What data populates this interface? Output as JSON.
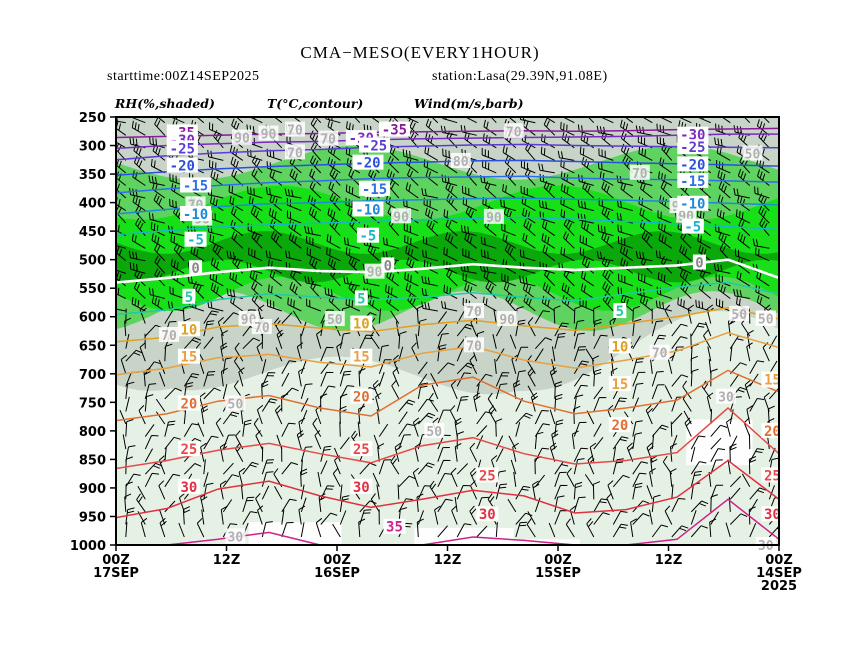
{
  "title": "CMA−MESO(EVERY1HOUR)",
  "starttime": "starttime:00Z14SEP2025",
  "station": "station:Lasa(29.39N,91.08E)",
  "legend": {
    "rh": "RH(%,shaded)",
    "temp": "T(°C,contour)",
    "wind": "Wind(m/s,barb)"
  },
  "colors": {
    "rh_lt50": "#ffffff",
    "rh_50_70": "#e6f1e6",
    "rh_70_80": "#c7d4c7",
    "rh_80_90": "#5fd35f",
    "rh_ge90": "#18e018",
    "rh_dark": "#0aa80a",
    "barb": "#000000"
  },
  "chart_data": {
    "type": "time-height cross section",
    "x_direction": "time decreases left to right",
    "y_axis": {
      "label": "pressure (hPa)",
      "range": [
        1000,
        250
      ],
      "ticks": [
        "250",
        "300",
        "350",
        "400",
        "450",
        "500",
        "550",
        "600",
        "650",
        "700",
        "750",
        "800",
        "850",
        "900",
        "950",
        "1000"
      ]
    },
    "x_ticks": [
      {
        "line1": "00Z",
        "line2": "17SEP",
        "line3": ""
      },
      {
        "line1": "12Z",
        "line2": "",
        "line3": ""
      },
      {
        "line1": "00Z",
        "line2": "16SEP",
        "line3": ""
      },
      {
        "line1": "12Z",
        "line2": "",
        "line3": ""
      },
      {
        "line1": "00Z",
        "line2": "15SEP",
        "line3": ""
      },
      {
        "line1": "12Z",
        "line2": "",
        "line3": ""
      },
      {
        "line1": "00Z",
        "line2": "14SEP",
        "line3": "2025"
      }
    ],
    "temperature_contours": [
      {
        "value": -35,
        "color": "#8b1a9b",
        "pressures": [
          286,
          284,
          282,
          280,
          279,
          277,
          276,
          275,
          274,
          275,
          274,
          272,
          271,
          270
        ]
      },
      {
        "value": -30,
        "color": "#7a2bc0",
        "pressures": [
          305,
          300,
          297,
          294,
          293,
          290,
          288,
          287,
          286,
          285,
          284,
          282,
          280,
          280
        ]
      },
      {
        "value": -25,
        "color": "#5b3dd6",
        "pressures": [
          325,
          318,
          313,
          309,
          307,
          303,
          301,
          299,
          298,
          300,
          301,
          302,
          303,
          304
        ]
      },
      {
        "value": -20,
        "color": "#2a4fe0",
        "pressures": [
          352,
          346,
          341,
          337,
          334,
          331,
          329,
          327,
          326,
          328,
          330,
          332,
          334,
          336
        ]
      },
      {
        "value": -15,
        "color": "#2c6fe8",
        "pressures": [
          383,
          376,
          370,
          365,
          362,
          358,
          356,
          355,
          354,
          357,
          359,
          360,
          362,
          364
        ]
      },
      {
        "value": -10,
        "color": "#1b8ad8",
        "pressures": [
          420,
          412,
          407,
          402,
          400,
          397,
          395,
          393,
          392,
          394,
          396,
          398,
          401,
          404
        ]
      },
      {
        "value": -5,
        "color": "#18b6c8",
        "pressures": [
          456,
          449,
          443,
          439,
          436,
          433,
          430,
          428,
          426,
          429,
          433,
          437,
          442,
          447
        ]
      },
      {
        "value": 0,
        "color": "#ffffff",
        "pressures": [
          540,
          532,
          522,
          514,
          520,
          522,
          516,
          508,
          514,
          518,
          514,
          510,
          500,
          532
        ]
      },
      {
        "value": 5,
        "color": "#22c9a2",
        "pressures": [
          596,
          588,
          570,
          560,
          566,
          570,
          566,
          558,
          566,
          572,
          560,
          548,
          540,
          560
        ]
      },
      {
        "value": 10,
        "color": "#e0a020",
        "pressures": [
          644,
          636,
          618,
          612,
          620,
          626,
          614,
          606,
          616,
          624,
          612,
          600,
          584,
          604
        ]
      },
      {
        "value": 15,
        "color": "#e8a040",
        "pressures": [
          702,
          690,
          672,
          666,
          680,
          688,
          664,
          652,
          676,
          690,
          676,
          660,
          628,
          654
        ]
      },
      {
        "value": 20,
        "color": "#e07030",
        "pressures": [
          782,
          770,
          748,
          738,
          760,
          774,
          720,
          706,
          748,
          770,
          760,
          746,
          694,
          732
        ]
      },
      {
        "value": 25,
        "color": "#e84848",
        "pressures": [
          866,
          852,
          834,
          822,
          840,
          856,
          826,
          812,
          840,
          858,
          852,
          838,
          760,
          840
        ]
      },
      {
        "value": 30,
        "color": "#e03040",
        "pressures": [
          952,
          936,
          902,
          888,
          914,
          934,
          920,
          904,
          914,
          944,
          938,
          916,
          852,
          920
        ]
      },
      {
        "value": 35,
        "color": "#d0208a",
        "pressures": [
          1005,
          1000,
          990,
          978,
          1000,
          1002,
          1000,
          986,
          992,
          1000,
          1000,
          990,
          920,
          990
        ]
      }
    ],
    "contour_labels": [
      {
        "text": "-35",
        "p": 277,
        "t": 0.1,
        "color": "#8b1a9b"
      },
      {
        "text": "-35",
        "p": 272,
        "t": 0.42,
        "color": "#8b1a9b"
      },
      {
        "text": "-30",
        "p": 290,
        "t": 0.1,
        "color": "#7a2bc0"
      },
      {
        "text": "-30",
        "p": 287,
        "t": 0.37,
        "color": "#7a2bc0"
      },
      {
        "text": "-30",
        "p": 281,
        "t": 0.87,
        "color": "#7a2bc0"
      },
      {
        "text": "-25",
        "p": 305,
        "t": 0.1,
        "color": "#5b3dd6"
      },
      {
        "text": "-25",
        "p": 300,
        "t": 0.39,
        "color": "#5b3dd6"
      },
      {
        "text": "-25",
        "p": 303,
        "t": 0.87,
        "color": "#5b3dd6"
      },
      {
        "text": "-20",
        "p": 335,
        "t": 0.1,
        "color": "#2a4fe0"
      },
      {
        "text": "-20",
        "p": 330,
        "t": 0.38,
        "color": "#2a4fe0"
      },
      {
        "text": "-20",
        "p": 333,
        "t": 0.87,
        "color": "#2a4fe0"
      },
      {
        "text": "-15",
        "p": 370,
        "t": 0.12,
        "color": "#2c6fe8"
      },
      {
        "text": "-15",
        "p": 376,
        "t": 0.39,
        "color": "#2c6fe8"
      },
      {
        "text": "-15",
        "p": 362,
        "t": 0.87,
        "color": "#2c6fe8"
      },
      {
        "text": "-10",
        "p": 420,
        "t": 0.12,
        "color": "#1b8ad8"
      },
      {
        "text": "-10",
        "p": 412,
        "t": 0.38,
        "color": "#1b8ad8"
      },
      {
        "text": "-10",
        "p": 402,
        "t": 0.87,
        "color": "#1b8ad8"
      },
      {
        "text": "-5",
        "p": 465,
        "t": 0.12,
        "color": "#18b6c8"
      },
      {
        "text": "-5",
        "p": 458,
        "t": 0.38,
        "color": "#18b6c8"
      },
      {
        "text": "-5",
        "p": 442,
        "t": 0.87,
        "color": "#18b6c8"
      },
      {
        "text": "0",
        "p": 515,
        "t": 0.12,
        "color": "#888888"
      },
      {
        "text": "0",
        "p": 510,
        "t": 0.41,
        "color": "#888888"
      },
      {
        "text": "0",
        "p": 505,
        "t": 0.88,
        "color": "#888888"
      },
      {
        "text": "5",
        "p": 565,
        "t": 0.11,
        "color": "#22c9a2"
      },
      {
        "text": "5",
        "p": 568,
        "t": 0.37,
        "color": "#22c9a2"
      },
      {
        "text": "5",
        "p": 590,
        "t": 0.76,
        "color": "#22c9a2"
      },
      {
        "text": "10",
        "p": 622,
        "t": 0.11,
        "color": "#e0a020"
      },
      {
        "text": "10",
        "p": 612,
        "t": 0.37,
        "color": "#e0a020"
      },
      {
        "text": "10",
        "p": 652,
        "t": 0.76,
        "color": "#e0a020"
      },
      {
        "text": "15",
        "p": 670,
        "t": 0.11,
        "color": "#e8a040"
      },
      {
        "text": "15",
        "p": 670,
        "t": 0.37,
        "color": "#e8a040"
      },
      {
        "text": "15",
        "p": 718,
        "t": 0.76,
        "color": "#e8a040"
      },
      {
        "text": "15",
        "p": 710,
        "t": 0.99,
        "color": "#e8a040"
      },
      {
        "text": "20",
        "p": 752,
        "t": 0.11,
        "color": "#e07030"
      },
      {
        "text": "20",
        "p": 740,
        "t": 0.37,
        "color": "#e07030"
      },
      {
        "text": "20",
        "p": 790,
        "t": 0.76,
        "color": "#e07030"
      },
      {
        "text": "20",
        "p": 800,
        "t": 0.99,
        "color": "#e07030"
      },
      {
        "text": "25",
        "p": 832,
        "t": 0.11,
        "color": "#e84848"
      },
      {
        "text": "25",
        "p": 832,
        "t": 0.37,
        "color": "#e84848"
      },
      {
        "text": "25",
        "p": 878,
        "t": 0.56,
        "color": "#e84848"
      },
      {
        "text": "25",
        "p": 878,
        "t": 0.99,
        "color": "#e84848"
      },
      {
        "text": "30",
        "p": 898,
        "t": 0.11,
        "color": "#e03040"
      },
      {
        "text": "30",
        "p": 898,
        "t": 0.37,
        "color": "#e03040"
      },
      {
        "text": "30",
        "p": 946,
        "t": 0.56,
        "color": "#e03040"
      },
      {
        "text": "30",
        "p": 946,
        "t": 0.99,
        "color": "#e03040"
      },
      {
        "text": "35",
        "p": 968,
        "t": 0.42,
        "color": "#d0208a"
      }
    ],
    "rh_labels": [
      {
        "text": "90",
        "p": 286,
        "t": 0.19
      },
      {
        "text": "90",
        "p": 279,
        "t": 0.23
      },
      {
        "text": "70",
        "p": 288,
        "t": 0.32
      },
      {
        "text": "70",
        "p": 312,
        "t": 0.27
      },
      {
        "text": "70",
        "p": 272,
        "t": 0.27
      },
      {
        "text": "80",
        "p": 327,
        "t": 0.52
      },
      {
        "text": "70",
        "p": 275,
        "t": 0.6
      },
      {
        "text": "50",
        "p": 314,
        "t": 0.96
      },
      {
        "text": "70",
        "p": 348,
        "t": 0.79
      },
      {
        "text": "70",
        "p": 378,
        "t": 0.39
      },
      {
        "text": "70",
        "p": 403,
        "t": 0.12
      },
      {
        "text": "90",
        "p": 428,
        "t": 0.13
      },
      {
        "text": "90",
        "p": 424,
        "t": 0.43
      },
      {
        "text": "90",
        "p": 425,
        "t": 0.57
      },
      {
        "text": "90",
        "p": 406,
        "t": 0.85
      },
      {
        "text": "90",
        "p": 423,
        "t": 0.86
      },
      {
        "text": "90",
        "p": 521,
        "t": 0.39
      },
      {
        "text": "90",
        "p": 604,
        "t": 0.2
      },
      {
        "text": "90",
        "p": 604,
        "t": 0.59
      },
      {
        "text": "90",
        "p": 604,
        "t": 0.98
      },
      {
        "text": "70",
        "p": 618,
        "t": 0.22
      },
      {
        "text": "70",
        "p": 632,
        "t": 0.08
      },
      {
        "text": "50",
        "p": 603,
        "t": 0.98
      },
      {
        "text": "70",
        "p": 650,
        "t": 0.54
      },
      {
        "text": "50",
        "p": 595,
        "t": 0.94
      },
      {
        "text": "50",
        "p": 604,
        "t": 0.33
      },
      {
        "text": "70",
        "p": 590,
        "t": 0.54
      },
      {
        "text": "70",
        "p": 663,
        "t": 0.82
      },
      {
        "text": "50",
        "p": 752,
        "t": 0.18
      },
      {
        "text": "50",
        "p": 800,
        "t": 0.48
      },
      {
        "text": "70",
        "p": 712,
        "t": 0.99
      },
      {
        "text": "30",
        "p": 740,
        "t": 0.92
      },
      {
        "text": "30",
        "p": 985,
        "t": 0.18
      },
      {
        "text": "30",
        "p": 1000,
        "t": 0.98
      }
    ]
  }
}
